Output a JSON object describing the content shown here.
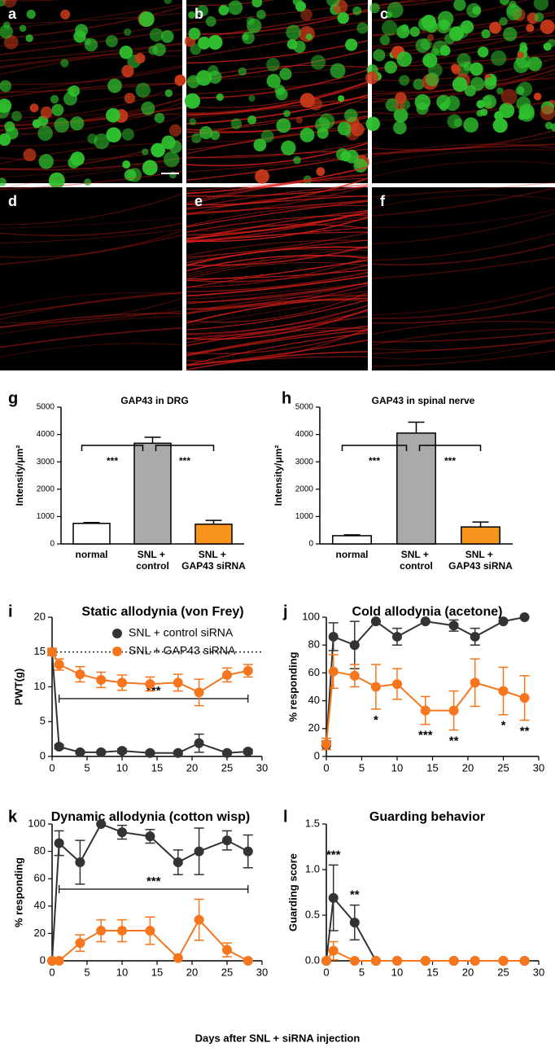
{
  "image_panels": [
    "a",
    "b",
    "c",
    "d",
    "e",
    "f"
  ],
  "x_label_shared": "Days after SNL + siRNA injection",
  "chart_data": [
    {
      "type": "bar",
      "panel": "g",
      "title": "GAP43 in DRG",
      "y_label": "Intensity/μm²",
      "categories": [
        "normal",
        "SNL + control",
        "SNL + GAP43 siRNA"
      ],
      "values": [
        750,
        3680,
        720
      ],
      "errors": [
        30,
        220,
        140
      ],
      "colors": [
        "#ffffff",
        "#aaaaaa",
        "#f7941d"
      ],
      "ylim": [
        0,
        5000
      ],
      "yticks": [
        0,
        1000,
        2000,
        3000,
        4000,
        5000
      ],
      "significance": [
        "***",
        "***"
      ]
    },
    {
      "type": "bar",
      "panel": "h",
      "title": "GAP43 in spinal nerve",
      "y_label": "Intensity/μm²",
      "categories": [
        "normal",
        "SNL + control",
        "SNL + GAP43 siRNA"
      ],
      "values": [
        300,
        4050,
        620
      ],
      "errors": [
        30,
        400,
        180
      ],
      "colors": [
        "#ffffff",
        "#aaaaaa",
        "#f7941d"
      ],
      "ylim": [
        0,
        5000
      ],
      "yticks": [
        0,
        1000,
        2000,
        3000,
        4000,
        5000
      ],
      "significance": [
        "***",
        "***"
      ]
    },
    {
      "type": "line",
      "panel": "i",
      "title": "Static allodynia (von Frey)",
      "y_label": "PWT(g)",
      "x": [
        0,
        1,
        4,
        7,
        10,
        14,
        18,
        21,
        25,
        28
      ],
      "xlim": [
        0,
        30
      ],
      "xticks": [
        0,
        5,
        10,
        15,
        20,
        25,
        30
      ],
      "ylim": [
        0,
        20
      ],
      "yticks": [
        0,
        5,
        10,
        15,
        20
      ],
      "reference_line": 15,
      "legend": "upper right",
      "annotation": "***",
      "series": [
        {
          "name": "SNL + control siRNA",
          "color": "#333333",
          "values": [
            15,
            1.4,
            0.6,
            0.6,
            0.8,
            0.5,
            0.5,
            1.9,
            0.5,
            0.7
          ],
          "errors": [
            0.5,
            0.3,
            0.2,
            0.2,
            0.3,
            0.2,
            0.2,
            1.3,
            0.2,
            0.3
          ]
        },
        {
          "name": "SNL + GAP43 siRNA",
          "color": "#f7761d",
          "values": [
            15,
            13.2,
            11.8,
            11,
            10.6,
            10.4,
            10.6,
            9.2,
            11.7,
            12.3
          ],
          "errors": [
            0.5,
            0.8,
            1.1,
            1.1,
            1.1,
            1,
            1.2,
            1.9,
            1,
            0.9
          ]
        }
      ]
    },
    {
      "type": "line",
      "panel": "j",
      "title": "Cold allodynia (acetone)",
      "y_label": "% responding",
      "x": [
        0,
        1,
        4,
        7,
        10,
        14,
        18,
        21,
        25,
        28
      ],
      "xlim": [
        0,
        30
      ],
      "xticks": [
        0,
        5,
        10,
        15,
        20,
        25,
        30
      ],
      "ylim": [
        0,
        100
      ],
      "yticks": [
        0,
        20,
        40,
        60,
        80,
        100
      ],
      "series": [
        {
          "name": "SNL + control siRNA",
          "color": "#333333",
          "values": [
            8,
            86,
            80,
            97,
            86,
            97,
            94,
            86,
            97,
            100
          ],
          "errors": [
            3,
            10,
            17,
            0,
            6,
            0,
            4,
            6,
            0,
            0
          ]
        },
        {
          "name": "SNL + GAP43 siRNA",
          "color": "#f7761d",
          "values": [
            9,
            61,
            58,
            50,
            52,
            33,
            33,
            53,
            47,
            42
          ],
          "errors": [
            4,
            12,
            8,
            16,
            11,
            10,
            14,
            17,
            17,
            16
          ],
          "point_labels": [
            null,
            null,
            null,
            "*",
            null,
            "***",
            "**",
            null,
            "*",
            "**"
          ]
        }
      ]
    },
    {
      "type": "line",
      "panel": "k",
      "title": "Dynamic allodynia (cotton wisp)",
      "y_label": "% responding",
      "x": [
        0,
        1,
        4,
        7,
        10,
        14,
        18,
        21,
        25,
        28
      ],
      "xlim": [
        0,
        30
      ],
      "xticks": [
        0,
        5,
        10,
        15,
        20,
        25,
        30
      ],
      "ylim": [
        0,
        100
      ],
      "yticks": [
        0,
        20,
        40,
        60,
        80,
        100
      ],
      "annotation": "***",
      "series": [
        {
          "name": "SNL + control siRNA",
          "color": "#333333",
          "values": [
            0,
            86,
            72,
            100,
            94,
            91,
            72,
            80,
            88,
            80
          ],
          "errors": [
            0,
            9,
            16,
            0,
            5,
            5,
            9,
            17,
            7,
            12
          ]
        },
        {
          "name": "SNL + GAP43 siRNA",
          "color": "#f7761d",
          "values": [
            0,
            0,
            13,
            22,
            22,
            22,
            2,
            30,
            8,
            0
          ],
          "errors": [
            0,
            0,
            6,
            8,
            8,
            10,
            0,
            15,
            5,
            0
          ]
        }
      ]
    },
    {
      "type": "line",
      "panel": "l",
      "title": "Guarding behavior",
      "y_label": "Guarding score",
      "x": [
        0,
        1,
        4,
        7,
        10,
        14,
        18,
        21,
        25,
        28
      ],
      "xlim": [
        0,
        30
      ],
      "xticks": [
        0,
        5,
        10,
        15,
        20,
        25,
        30
      ],
      "ylim": [
        0,
        1.5
      ],
      "yticks": [
        {
          "value": 0,
          "label": "0.0"
        },
        0.5,
        {
          "value": 1,
          "label": "1.0"
        },
        1.5
      ],
      "series": [
        {
          "name": "SNL + control siRNA",
          "color": "#333333",
          "values": [
            0,
            0.69,
            0.42,
            0,
            0,
            0,
            0,
            0,
            0,
            0
          ],
          "errors": [
            0,
            0.36,
            0.19,
            0,
            0,
            0,
            0,
            0,
            0,
            0
          ],
          "point_labels": [
            null,
            "***",
            "**",
            null,
            null,
            null,
            null,
            null,
            null,
            null
          ]
        },
        {
          "name": "SNL + GAP43 siRNA",
          "color": "#f7761d",
          "values": [
            0,
            0.11,
            0,
            0,
            0,
            0,
            0,
            0,
            0,
            0
          ],
          "errors": [
            0,
            0.1,
            0,
            0,
            0,
            0,
            0,
            0,
            0,
            0
          ]
        }
      ]
    }
  ]
}
